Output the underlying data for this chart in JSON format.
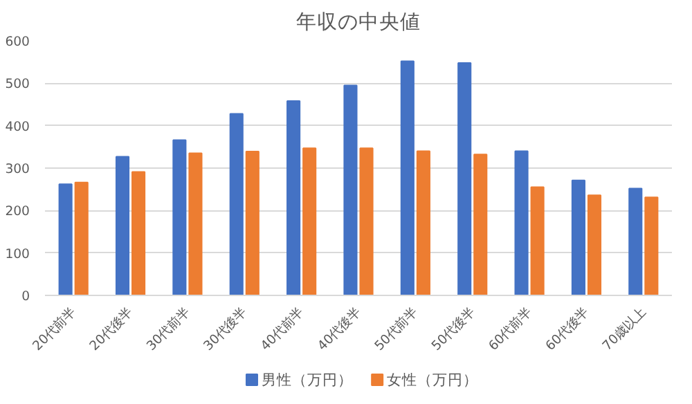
{
  "chart_data": {
    "type": "bar",
    "title": "年収の中央値",
    "categories": [
      "20代前半",
      "20代後半",
      "30代前半",
      "30代後半",
      "40代前半",
      "40代後半",
      "50代前半",
      "50代後半",
      "60代前半",
      "60代後半",
      "70歳以上"
    ],
    "series": [
      {
        "name": "男性（万円）",
        "color": "#4472c4",
        "values": [
          262,
          327,
          366,
          428,
          458,
          495,
          552,
          548,
          340,
          271,
          252
        ]
      },
      {
        "name": "女性（万円）",
        "color": "#ed7d31",
        "values": [
          266,
          291,
          335,
          339,
          347,
          347,
          340,
          332,
          255,
          236,
          231
        ]
      }
    ],
    "ylim": [
      0,
      600
    ],
    "yticks": [
      0,
      100,
      200,
      300,
      400,
      500,
      600
    ],
    "grid": "y",
    "legend": "bottom"
  }
}
